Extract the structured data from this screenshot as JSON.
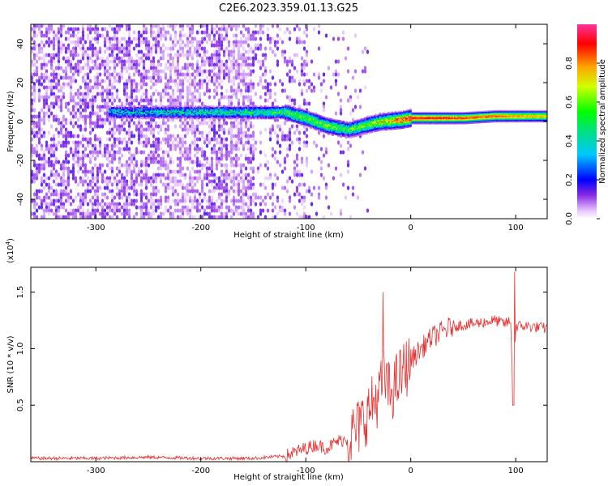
{
  "title": "C2E6.2023.359.01.13.G25",
  "chart_data": [
    {
      "type": "heatmap",
      "xlabel": "Height of straight line (km)",
      "ylabel": "Frequency (Hz)",
      "xlim": [
        -362,
        130
      ],
      "ylim": [
        -50,
        50
      ],
      "xticks": [
        -300,
        -200,
        -100,
        0,
        100
      ],
      "yticks": [
        -40,
        -20,
        0,
        20,
        40
      ],
      "xtick_labels": [
        "-300",
        "-200",
        "-100",
        "0",
        "100"
      ],
      "ytick_labels": [
        "-40",
        "-20",
        "0",
        "20",
        "40"
      ],
      "colorbar": {
        "label": "Normalized spectral amplitude",
        "range": [
          0.0,
          1.0
        ],
        "ticks": [
          0.0,
          0.2,
          0.4,
          0.6,
          0.8
        ],
        "tick_labels": [
          "0.0",
          "0.2",
          "0.4",
          "0.6",
          "0.8"
        ]
      },
      "ridge": {
        "x": [
          -285,
          -250,
          -200,
          -150,
          -120,
          -100,
          -80,
          -60,
          -45,
          -30,
          -10,
          0,
          20,
          50,
          80,
          100,
          130
        ],
        "freq": [
          5,
          5,
          5,
          5,
          5,
          2,
          -2,
          -4,
          -2,
          0,
          1,
          2,
          2,
          2,
          3,
          3,
          3
        ],
        "amplitude": [
          0.35,
          0.35,
          0.4,
          0.45,
          0.5,
          0.55,
          0.55,
          0.5,
          0.55,
          0.65,
          0.85,
          0.9,
          0.9,
          0.85,
          0.85,
          0.8,
          0.75
        ]
      }
    },
    {
      "type": "line",
      "xlabel": "Height of straight line (km)",
      "ylabel": "SNR (10 * v/v)",
      "y_multiplier": "(x10",
      "y_multiplier_exp": "4",
      "y_multiplier_close": ")",
      "xlim": [
        -362,
        130
      ],
      "ylim": [
        0,
        1.72
      ],
      "xticks": [
        -300,
        -200,
        -100,
        0,
        100
      ],
      "yticks": [
        0.5,
        1.0,
        1.5
      ],
      "xtick_labels": [
        "-300",
        "-200",
        "-100",
        "0",
        "100"
      ],
      "ytick_labels": [
        "0.5",
        "1.0",
        "1.5"
      ],
      "color": "#e53030",
      "series": [
        {
          "x": [
            -362,
            -300,
            -250,
            -200,
            -150,
            -120,
            -100,
            -90,
            -80,
            -70,
            -60,
            -50,
            -40,
            -30,
            -25,
            -20,
            -10,
            0,
            10,
            20,
            30,
            40,
            60,
            80,
            90,
            95,
            98,
            100,
            110,
            130
          ],
          "y": [
            0.03,
            0.03,
            0.04,
            0.03,
            0.03,
            0.05,
            0.12,
            0.15,
            0.12,
            0.18,
            0.2,
            0.3,
            0.45,
            0.6,
            0.75,
            0.6,
            0.75,
            0.9,
            1.0,
            1.1,
            1.15,
            1.2,
            1.22,
            1.25,
            1.22,
            1.25,
            0.5,
            1.2,
            1.2,
            1.18
          ]
        }
      ]
    }
  ]
}
